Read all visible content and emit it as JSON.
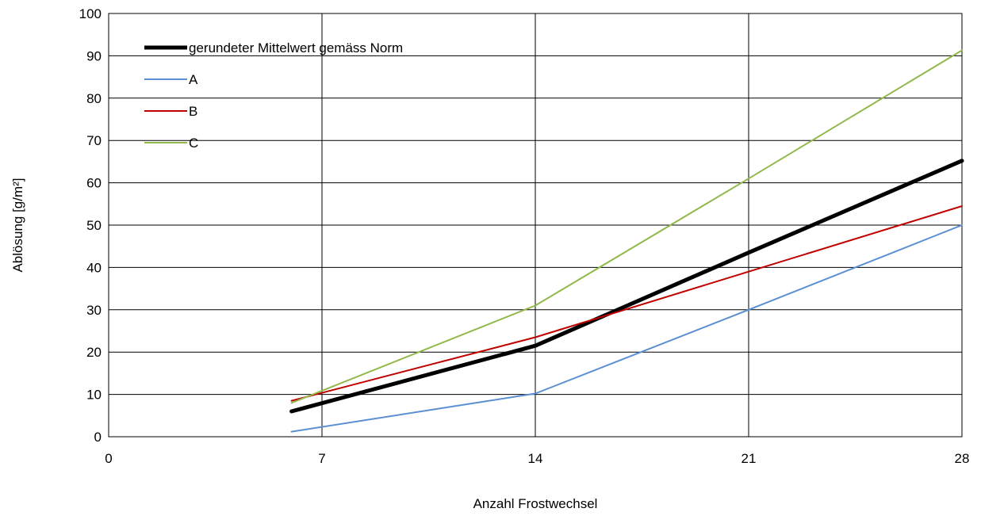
{
  "chart_data": {
    "type": "line",
    "title": "",
    "xlabel": "Anzahl Frostwechsel",
    "ylabel": "Ablösung [g/m²]",
    "xlim": [
      0,
      28
    ],
    "ylim": [
      0,
      100
    ],
    "xticks": [
      0,
      7,
      14,
      21,
      28
    ],
    "yticks": [
      0,
      10,
      20,
      30,
      40,
      50,
      60,
      70,
      80,
      90,
      100
    ],
    "grid": true,
    "legend": "top-left",
    "series": [
      {
        "name": "gerundeter Mittelwert gemäss Norm",
        "color": "#000000",
        "x": [
          6,
          14,
          21,
          28
        ],
        "y": [
          6,
          21.5,
          43.5,
          65.2
        ]
      },
      {
        "name": "A",
        "color": "#5b8fd4",
        "x": [
          6,
          14,
          21,
          28
        ],
        "y": [
          1.2,
          10.2,
          30,
          50
        ]
      },
      {
        "name": "B",
        "color": "#c00000",
        "x": [
          6,
          14,
          21,
          28
        ],
        "y": [
          8.5,
          23.5,
          39,
          54.5
        ]
      },
      {
        "name": "C",
        "color": "#92b84a",
        "x": [
          6,
          14,
          21,
          28
        ],
        "y": [
          8,
          31,
          61,
          91.3
        ]
      }
    ]
  }
}
